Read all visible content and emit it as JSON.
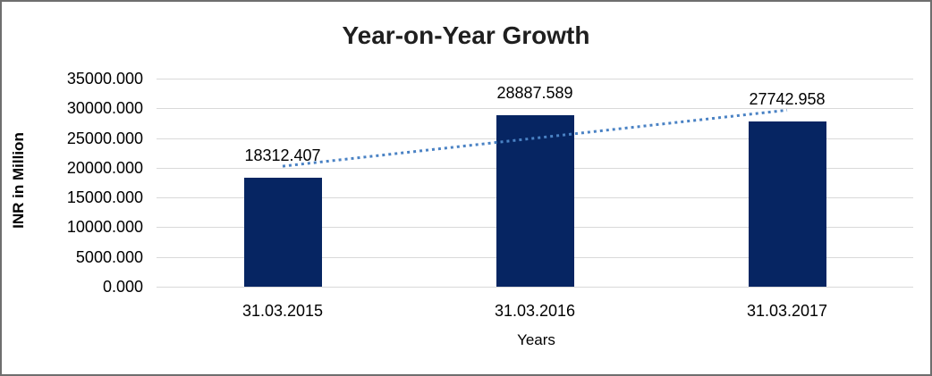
{
  "chart_data": {
    "type": "bar",
    "title": "Year-on-Year Growth",
    "xlabel": "Years",
    "ylabel": "INR in Million",
    "categories": [
      "31.03.2015",
      "31.03.2016",
      "31.03.2017"
    ],
    "values": [
      18312.407,
      28887.589,
      27742.958
    ],
    "data_labels": [
      "18312.407",
      "28887.589",
      "27742.958"
    ],
    "ylim": [
      0,
      35000
    ],
    "ytick_step": 5000,
    "ytick_decimals": 3,
    "grid": true,
    "legend_position": "none",
    "trendline": {
      "type": "linear",
      "style": "dotted"
    },
    "colors": {
      "bar": "#062562",
      "trendline": "#4a82c4",
      "gridline": "#d9d9d9",
      "title_text": "#1f1f1f",
      "label_text": "#000000",
      "chart_border": "#6e6e6e",
      "background": "#ffffff"
    }
  }
}
